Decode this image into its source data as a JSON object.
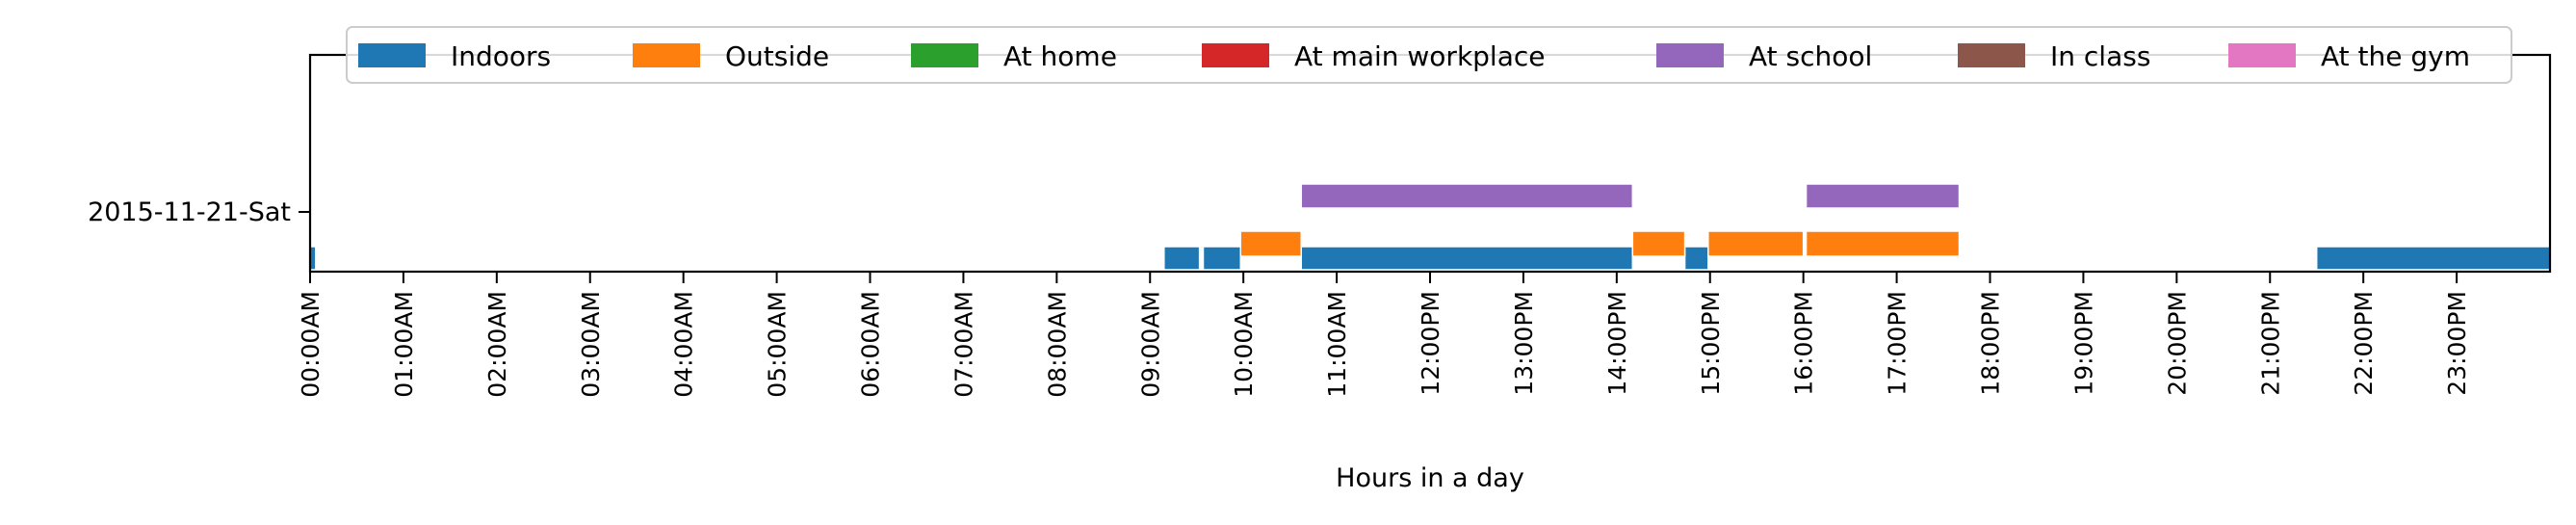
{
  "chart_data": {
    "type": "timeline",
    "xlabel": "Hours in a day",
    "xlim_hours": [
      0,
      24
    ],
    "x_ticks": [
      "00:00AM",
      "01:00AM",
      "02:00AM",
      "03:00AM",
      "04:00AM",
      "05:00AM",
      "06:00AM",
      "07:00AM",
      "08:00AM",
      "09:00AM",
      "10:00AM",
      "11:00AM",
      "12:00PM",
      "13:00PM",
      "14:00PM",
      "15:00PM",
      "16:00PM",
      "17:00PM",
      "18:00PM",
      "19:00PM",
      "20:00PM",
      "21:00PM",
      "22:00PM",
      "23:00PM"
    ],
    "y_categories": [
      "2015-11-21-Sat"
    ],
    "legend_position": "top",
    "series": [
      {
        "name": "Indoors",
        "color": "#1f77b4",
        "segments": [
          [
            0,
            0.06
          ],
          [
            9.15,
            9.53
          ],
          [
            9.57,
            9.97
          ],
          [
            10.62,
            14.17
          ],
          [
            14.73,
            14.98
          ],
          [
            21.5,
            24.0
          ]
        ]
      },
      {
        "name": "Outside",
        "color": "#ff7f0e",
        "segments": [
          [
            9.97,
            10.62
          ],
          [
            14.17,
            14.73
          ],
          [
            14.98,
            16.0
          ],
          [
            16.03,
            17.67
          ]
        ]
      },
      {
        "name": "At home",
        "color": "#2ca02c",
        "segments": []
      },
      {
        "name": "At main workplace",
        "color": "#d62728",
        "segments": []
      },
      {
        "name": "At school",
        "color": "#9467bd",
        "segments": [
          [
            10.62,
            14.17
          ],
          [
            16.03,
            17.67
          ]
        ]
      },
      {
        "name": "In class",
        "color": "#8c564b",
        "segments": []
      },
      {
        "name": "At the gym",
        "color": "#e377c2",
        "segments": []
      }
    ]
  }
}
